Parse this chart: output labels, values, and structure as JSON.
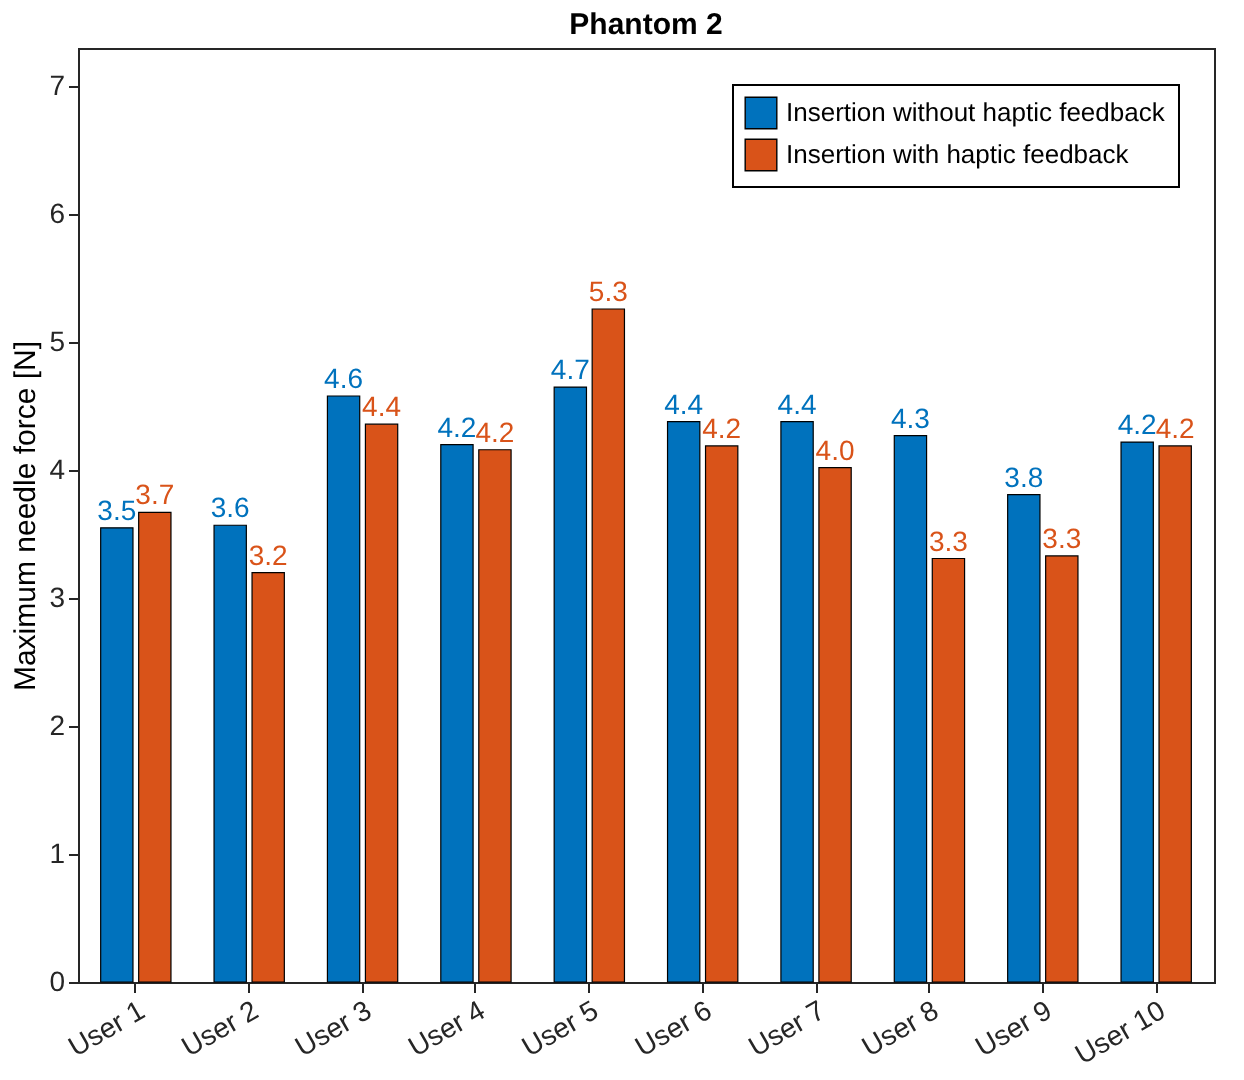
{
  "chart_data": {
    "type": "bar",
    "title": "Phantom 2",
    "ylabel": "Maximum needle force [N]",
    "categories": [
      "User 1",
      "User 2",
      "User 3",
      "User 4",
      "User 5",
      "User 6",
      "User 7",
      "User 8",
      "User 9",
      "User 10"
    ],
    "series": [
      {
        "name": "Insertion without haptic feedback",
        "color": "#0072bd",
        "values": [
          3.55,
          3.57,
          4.58,
          4.2,
          4.65,
          4.38,
          4.38,
          4.27,
          3.81,
          4.22
        ],
        "value_labels": [
          "3.5",
          "3.6",
          "4.6",
          "4.2",
          "4.7",
          "4.4",
          "4.4",
          "4.3",
          "3.8",
          "4.2"
        ]
      },
      {
        "name": "Insertion with haptic feedback",
        "color": "#d95319",
        "values": [
          3.67,
          3.2,
          4.36,
          4.16,
          5.26,
          4.19,
          4.02,
          3.31,
          3.33,
          4.19
        ],
        "value_labels": [
          "3.7",
          "3.2",
          "4.4",
          "4.2",
          "5.3",
          "4.2",
          "4.0",
          "3.3",
          "3.3",
          "4.2"
        ]
      }
    ],
    "ylim": [
      0,
      7.3
    ],
    "yticks": [
      0,
      1,
      2,
      3,
      4,
      5,
      6,
      7
    ],
    "grid": false,
    "legend": "top right"
  }
}
